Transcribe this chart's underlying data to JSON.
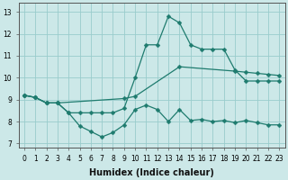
{
  "xlabel": "Humidex (Indice chaleur)",
  "bg_color": "#cce8e8",
  "grid_color": "#99cccc",
  "line_color": "#1e7b6e",
  "xlim": [
    -0.5,
    23.5
  ],
  "ylim": [
    6.8,
    13.4
  ],
  "xticks": [
    0,
    1,
    2,
    3,
    4,
    5,
    6,
    7,
    8,
    9,
    10,
    11,
    12,
    13,
    14,
    15,
    16,
    17,
    18,
    19,
    20,
    21,
    22,
    23
  ],
  "yticks": [
    7,
    8,
    9,
    10,
    11,
    12,
    13
  ],
  "line1_x": [
    0,
    1,
    2,
    3,
    4,
    5,
    6,
    7,
    8,
    9,
    10,
    11,
    12,
    13,
    14,
    15,
    16,
    17,
    18,
    19,
    20,
    21,
    22,
    23
  ],
  "line1_y": [
    9.2,
    9.1,
    8.85,
    8.85,
    8.4,
    7.8,
    7.55,
    7.3,
    7.5,
    7.85,
    8.55,
    8.75,
    8.55,
    8.0,
    8.55,
    8.05,
    8.1,
    8.0,
    8.05,
    7.95,
    8.05,
    7.95,
    7.85,
    7.85
  ],
  "line2_x": [
    0,
    1,
    2,
    3,
    4,
    5,
    6,
    7,
    8,
    9,
    10,
    11,
    12,
    13,
    14,
    15,
    16,
    17,
    18,
    19,
    20,
    21,
    22,
    23
  ],
  "line2_y": [
    9.2,
    9.1,
    8.85,
    8.85,
    8.4,
    8.4,
    8.4,
    8.4,
    8.4,
    8.6,
    10.0,
    11.5,
    11.5,
    12.8,
    12.5,
    11.5,
    11.3,
    11.3,
    11.3,
    10.35,
    9.85,
    9.85,
    9.85,
    9.85
  ],
  "line3_x": [
    0,
    1,
    2,
    3,
    9,
    10,
    14,
    19,
    20,
    21,
    22,
    23
  ],
  "line3_y": [
    9.2,
    9.1,
    8.85,
    8.85,
    9.05,
    9.15,
    10.5,
    10.3,
    10.25,
    10.2,
    10.15,
    10.1
  ],
  "markersize": 2.5,
  "linewidth": 0.9,
  "xlabel_fontsize": 7,
  "tick_fontsize": 5.5
}
